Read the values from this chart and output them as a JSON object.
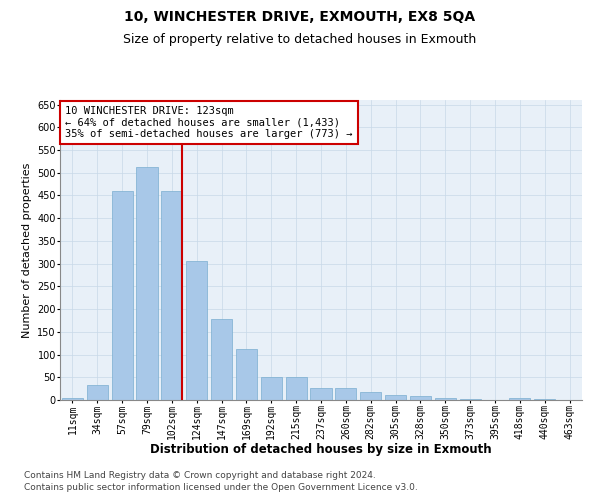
{
  "title1": "10, WINCHESTER DRIVE, EXMOUTH, EX8 5QA",
  "title2": "Size of property relative to detached houses in Exmouth",
  "xlabel": "Distribution of detached houses by size in Exmouth",
  "ylabel": "Number of detached properties",
  "categories": [
    "11sqm",
    "34sqm",
    "57sqm",
    "79sqm",
    "102sqm",
    "124sqm",
    "147sqm",
    "169sqm",
    "192sqm",
    "215sqm",
    "237sqm",
    "260sqm",
    "282sqm",
    "305sqm",
    "328sqm",
    "350sqm",
    "373sqm",
    "395sqm",
    "418sqm",
    "440sqm",
    "463sqm"
  ],
  "values": [
    5,
    33,
    460,
    512,
    460,
    305,
    178,
    113,
    50,
    50,
    26,
    26,
    18,
    12,
    8,
    5,
    2,
    1,
    4,
    2,
    1
  ],
  "bar_color": "#a8c8e8",
  "bar_edge_color": "#7aaed0",
  "highlight_index": 4,
  "highlight_line_color": "#cc0000",
  "annotation_box_color": "#cc0000",
  "annotation_text": "10 WINCHESTER DRIVE: 123sqm\n← 64% of detached houses are smaller (1,433)\n35% of semi-detached houses are larger (773) →",
  "ylim": [
    0,
    660
  ],
  "yticks": [
    0,
    50,
    100,
    150,
    200,
    250,
    300,
    350,
    400,
    450,
    500,
    550,
    600,
    650
  ],
  "footer1": "Contains HM Land Registry data © Crown copyright and database right 2024.",
  "footer2": "Contains public sector information licensed under the Open Government Licence v3.0.",
  "bg_color": "#ffffff",
  "plot_bg_color": "#e8f0f8",
  "grid_color": "#c8d8e8",
  "title1_fontsize": 10,
  "title2_fontsize": 9,
  "xlabel_fontsize": 8.5,
  "ylabel_fontsize": 8,
  "tick_fontsize": 7,
  "annotation_fontsize": 7.5,
  "footer_fontsize": 6.5
}
